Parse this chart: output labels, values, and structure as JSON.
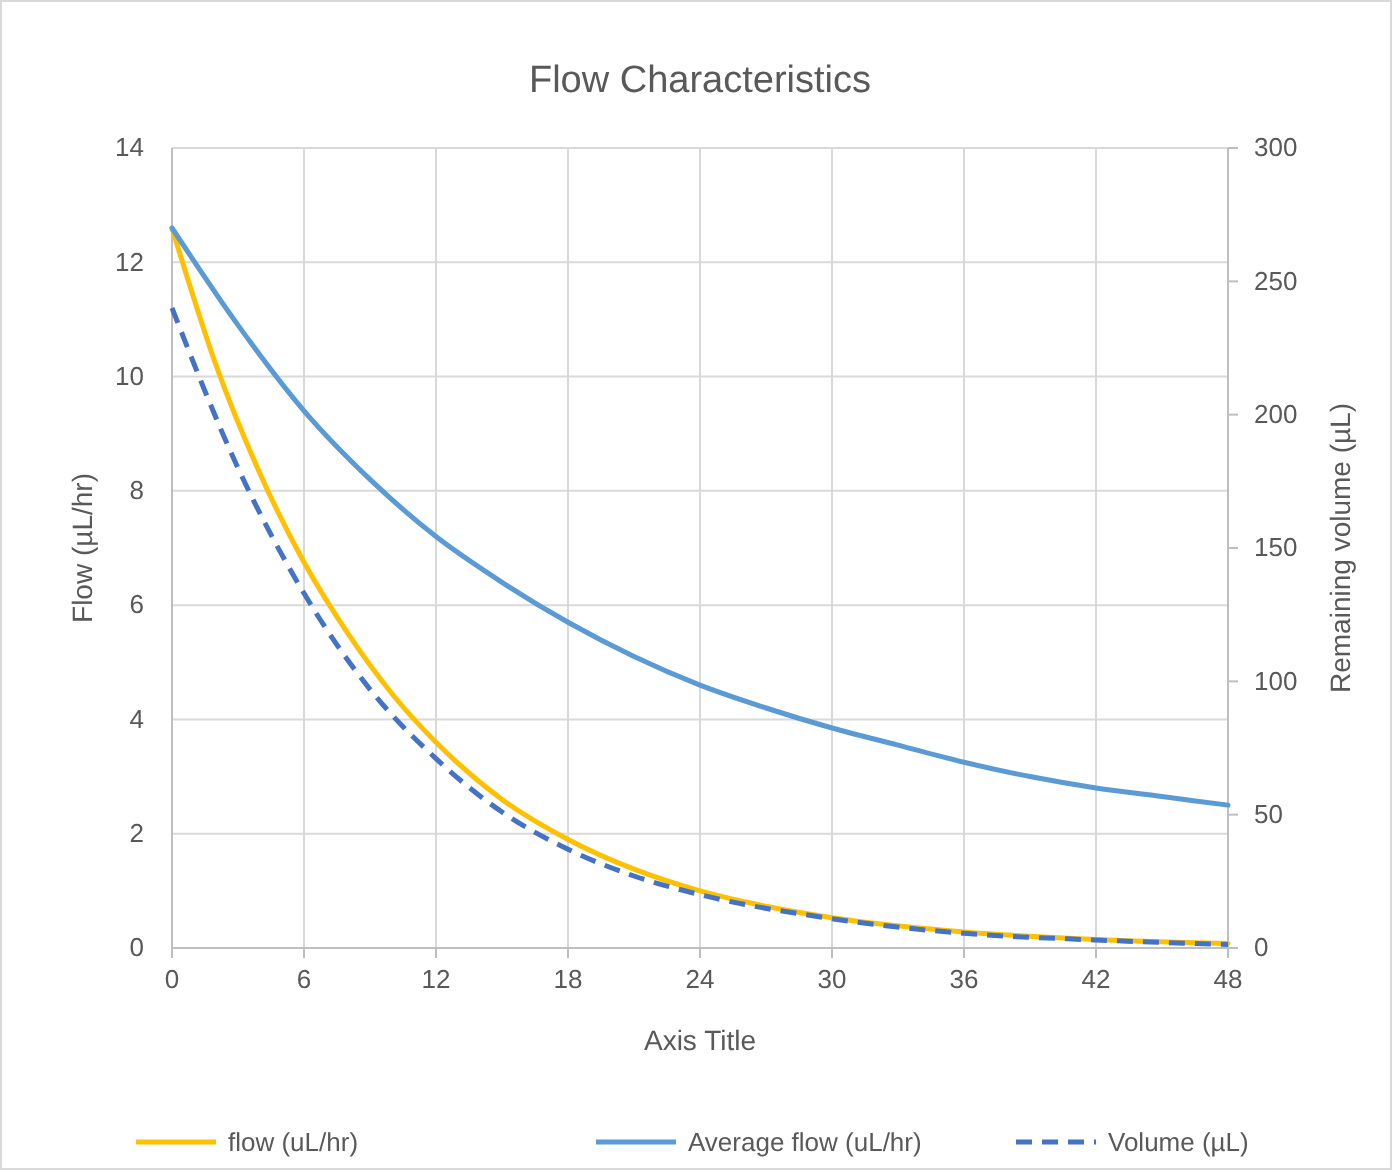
{
  "chart_data": {
    "type": "line",
    "title": "Flow Characteristics",
    "xlabel": "Axis Title",
    "ylabel": "Flow (µL/hr)",
    "y2label": "Remaining volume (µL)",
    "xlim": [
      0,
      48
    ],
    "xticks": [
      0,
      6,
      12,
      18,
      24,
      30,
      36,
      42,
      48
    ],
    "ylim": [
      0,
      14
    ],
    "yticks": [
      0,
      2,
      4,
      6,
      8,
      10,
      12,
      14
    ],
    "y2lim": [
      0,
      300
    ],
    "y2ticks": [
      0,
      50,
      100,
      150,
      200,
      250,
      300
    ],
    "grid": true,
    "legend": "bottom",
    "marker": "none",
    "series": [
      {
        "name": "flow (uL/hr)",
        "color": "#ffc000",
        "line_style": "solid",
        "x": [
          0,
          2,
          4,
          6,
          8,
          10,
          12,
          15,
          18,
          21,
          24,
          27,
          30,
          36,
          42,
          48
        ],
        "values": [
          12.6,
          10.2,
          8.3,
          6.75,
          5.5,
          4.45,
          3.6,
          2.6,
          1.9,
          1.38,
          1.0,
          0.73,
          0.53,
          0.28,
          0.15,
          0.08
        ]
      },
      {
        "name": "Average flow (uL/hr)",
        "color": "#5b9bd5",
        "line_style": "solid",
        "x": [
          0,
          3,
          6,
          9,
          12,
          15,
          18,
          21,
          24,
          27,
          30,
          33,
          36,
          39,
          42,
          45,
          48
        ],
        "values": [
          12.6,
          10.9,
          9.4,
          8.2,
          7.2,
          6.4,
          5.7,
          5.1,
          4.6,
          4.2,
          3.85,
          3.55,
          3.25,
          3.0,
          2.8,
          2.65,
          2.5
        ]
      },
      {
        "name": "Volume (µL)",
        "color": "#4472c4",
        "line_style": "dashed",
        "axis": "y2",
        "x": [
          0,
          3,
          6,
          9,
          12,
          15,
          18,
          21,
          24,
          30,
          36,
          42,
          48
        ],
        "values": [
          240,
          180,
          133,
          97,
          71,
          51,
          37,
          27,
          20,
          11,
          5.5,
          3,
          1.3
        ]
      }
    ]
  }
}
